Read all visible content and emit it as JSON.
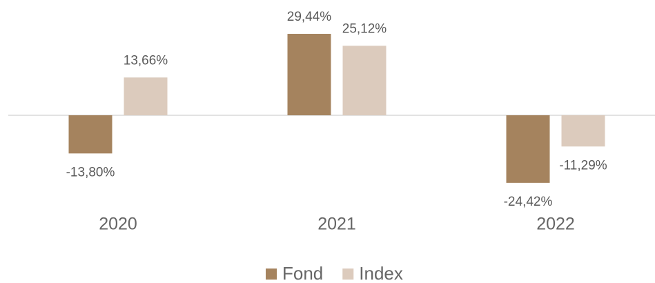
{
  "chart_data": {
    "type": "bar",
    "categories": [
      "2020",
      "2021",
      "2022"
    ],
    "series": [
      {
        "name": "Fond",
        "color": "#a5835e",
        "values": [
          -13.8,
          29.44,
          -24.42
        ],
        "value_labels": [
          "-13,80%",
          "29,44%",
          "-24,42%"
        ]
      },
      {
        "name": "Index",
        "color": "#dccbbd",
        "values": [
          13.66,
          25.12,
          -11.29
        ],
        "value_labels": [
          "13,66%",
          "25,12%",
          "-11,29%"
        ]
      }
    ],
    "legend": "bottom"
  }
}
